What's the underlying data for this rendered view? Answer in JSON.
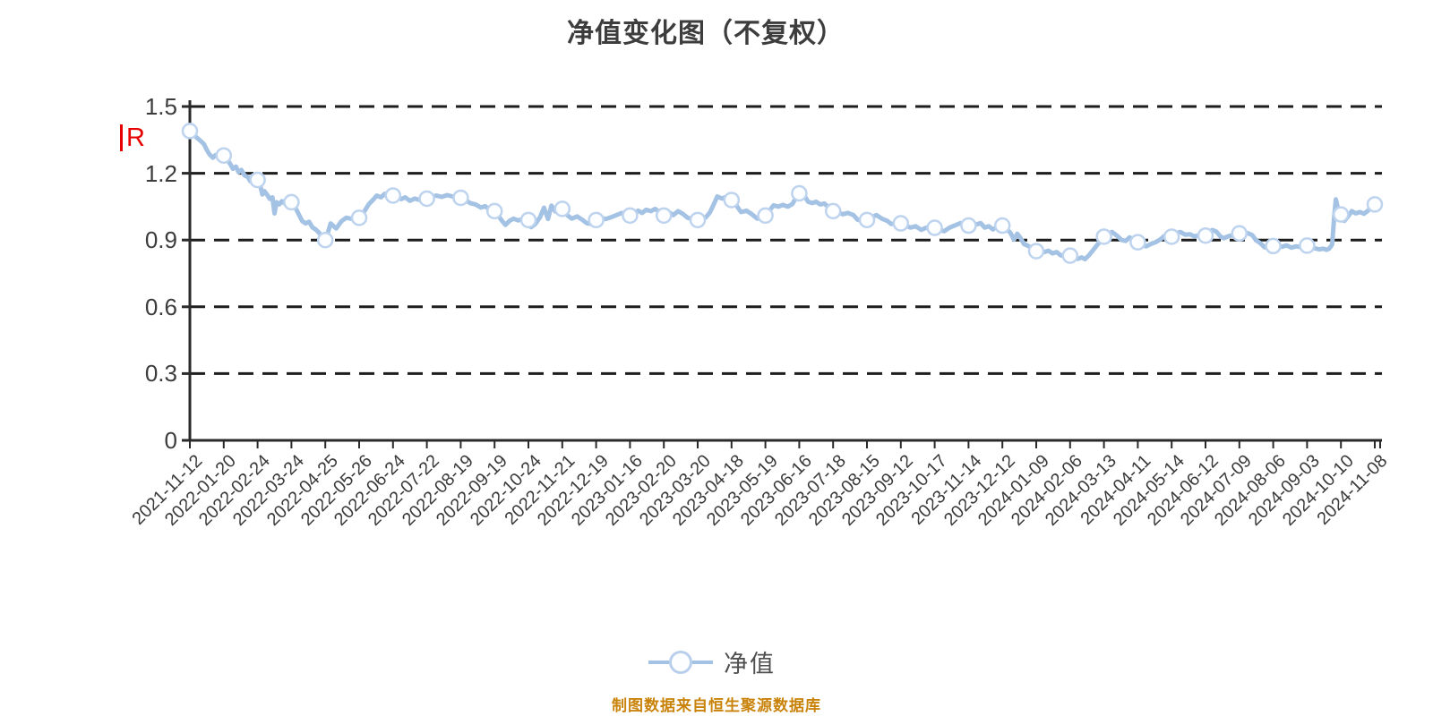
{
  "title": "净值变化图（不复权）",
  "annotation": {
    "text": "R",
    "color": "#e60000"
  },
  "legend": {
    "label": "净值"
  },
  "footer": {
    "text": "制图数据来自恒生聚源数据库",
    "color": "#c9830b"
  },
  "chart_data": {
    "type": "line",
    "title": "净值变化图（不复权）",
    "series_name": "净值",
    "ylim": [
      0,
      1.5
    ],
    "y_ticks": [
      "0",
      "0.3",
      "0.6",
      "0.9",
      "1.2",
      "1.5"
    ],
    "grid": "dashed-horizontal",
    "legend_position": "bottom-center",
    "x_labels": [
      "2021-11-12",
      "2022-01-20",
      "2022-02-24",
      "2022-03-24",
      "2022-04-25",
      "2022-05-26",
      "2022-06-24",
      "2022-07-22",
      "2022-08-19",
      "2022-09-19",
      "2022-10-24",
      "2022-11-21",
      "2022-12-19",
      "2023-01-16",
      "2023-02-20",
      "2023-03-20",
      "2023-04-18",
      "2023-05-19",
      "2023-06-16",
      "2023-07-18",
      "2023-08-15",
      "2023-09-12",
      "2023-10-17",
      "2023-11-14",
      "2023-12-12",
      "2024-01-09",
      "2024-02-06",
      "2024-03-13",
      "2024-04-11",
      "2024-05-14",
      "2024-06-12",
      "2024-07-09",
      "2024-08-06",
      "2024-09-03",
      "2024-10-10",
      "2024-11-08"
    ],
    "marker_values": [
      1.39,
      1.28,
      1.17,
      1.07,
      0.9,
      1.0,
      1.1,
      1.086,
      1.09,
      1.03,
      0.99,
      1.04,
      0.99,
      1.01,
      1.01,
      0.99,
      1.08,
      1.01,
      1.11,
      1.03,
      0.99,
      0.975,
      0.955,
      0.965,
      0.965,
      0.85,
      0.83,
      0.915,
      0.89,
      0.915,
      0.92,
      0.93,
      0.873,
      0.875,
      1.015,
      1.06
    ],
    "dense_path": [
      [
        0,
        1.39
      ],
      [
        0.12,
        1.372
      ],
      [
        0.22,
        1.358
      ],
      [
        0.32,
        1.345
      ],
      [
        0.42,
        1.33
      ],
      [
        0.5,
        1.305
      ],
      [
        0.58,
        1.285
      ],
      [
        0.68,
        1.27
      ],
      [
        0.76,
        1.282
      ],
      [
        0.86,
        1.272
      ],
      [
        0.94,
        1.285
      ],
      [
        1,
        1.28
      ],
      [
        1.1,
        1.262
      ],
      [
        1.2,
        1.24
      ],
      [
        1.27,
        1.22
      ],
      [
        1.36,
        1.23
      ],
      [
        1.44,
        1.205
      ],
      [
        1.52,
        1.215
      ],
      [
        1.62,
        1.19
      ],
      [
        1.72,
        1.182
      ],
      [
        1.78,
        1.165
      ],
      [
        1.86,
        1.19
      ],
      [
        1.94,
        1.178
      ],
      [
        2,
        1.17
      ],
      [
        2.08,
        1.145
      ],
      [
        2.14,
        1.105
      ],
      [
        2.2,
        1.12
      ],
      [
        2.3,
        1.1
      ],
      [
        2.36,
        1.085
      ],
      [
        2.44,
        1.092
      ],
      [
        2.5,
        1.02
      ],
      [
        2.56,
        1.07
      ],
      [
        2.64,
        1.06
      ],
      [
        2.72,
        1.075
      ],
      [
        2.82,
        1.062
      ],
      [
        2.9,
        1.058
      ],
      [
        3,
        1.07
      ],
      [
        3.1,
        1.05
      ],
      [
        3.2,
        1.02
      ],
      [
        3.32,
        0.985
      ],
      [
        3.42,
        0.975
      ],
      [
        3.52,
        0.982
      ],
      [
        3.62,
        0.957
      ],
      [
        3.72,
        0.947
      ],
      [
        3.82,
        0.932
      ],
      [
        3.92,
        0.91
      ],
      [
        4,
        0.9
      ],
      [
        4.08,
        0.935
      ],
      [
        4.16,
        0.975
      ],
      [
        4.32,
        0.952
      ],
      [
        4.48,
        0.985
      ],
      [
        4.62,
        1.0
      ],
      [
        4.78,
        0.995
      ],
      [
        4.9,
        1.002
      ],
      [
        5,
        1.0
      ],
      [
        5.14,
        1.025
      ],
      [
        5.28,
        1.06
      ],
      [
        5.42,
        1.082
      ],
      [
        5.52,
        1.1
      ],
      [
        5.64,
        1.092
      ],
      [
        5.76,
        1.108
      ],
      [
        5.88,
        1.1
      ],
      [
        6,
        1.1
      ],
      [
        6.12,
        1.094
      ],
      [
        6.24,
        1.084
      ],
      [
        6.36,
        1.092
      ],
      [
        6.5,
        1.076
      ],
      [
        6.64,
        1.086
      ],
      [
        6.78,
        1.08
      ],
      [
        6.9,
        1.09
      ],
      [
        7,
        1.086
      ],
      [
        7.14,
        1.094
      ],
      [
        7.28,
        1.1
      ],
      [
        7.44,
        1.094
      ],
      [
        7.6,
        1.102
      ],
      [
        7.76,
        1.096
      ],
      [
        7.9,
        1.09
      ],
      [
        8,
        1.09
      ],
      [
        8.14,
        1.08
      ],
      [
        8.28,
        1.066
      ],
      [
        8.44,
        1.06
      ],
      [
        8.6,
        1.046
      ],
      [
        8.72,
        1.052
      ],
      [
        8.86,
        1.036
      ],
      [
        9,
        1.03
      ],
      [
        9.1,
        1.012
      ],
      [
        9.2,
        0.99
      ],
      [
        9.32,
        0.968
      ],
      [
        9.44,
        0.986
      ],
      [
        9.56,
        0.996
      ],
      [
        9.7,
        0.988
      ],
      [
        9.85,
        0.996
      ],
      [
        10,
        0.99
      ],
      [
        10.08,
        0.958
      ],
      [
        10.2,
        0.972
      ],
      [
        10.34,
        1.002
      ],
      [
        10.46,
        1.045
      ],
      [
        10.58,
        0.995
      ],
      [
        10.68,
        1.055
      ],
      [
        10.8,
        1.028
      ],
      [
        10.9,
        1.038
      ],
      [
        11,
        1.04
      ],
      [
        11.14,
        1.012
      ],
      [
        11.28,
        0.996
      ],
      [
        11.44,
        1.006
      ],
      [
        11.6,
        0.99
      ],
      [
        11.72,
        0.976
      ],
      [
        11.86,
        0.972
      ],
      [
        12,
        0.99
      ],
      [
        12.14,
        1.0
      ],
      [
        12.28,
        0.994
      ],
      [
        12.44,
        1.002
      ],
      [
        12.6,
        1.012
      ],
      [
        12.76,
        1.022
      ],
      [
        12.9,
        1.016
      ],
      [
        13,
        1.01
      ],
      [
        13.12,
        1.022
      ],
      [
        13.24,
        1.032
      ],
      [
        13.36,
        1.022
      ],
      [
        13.48,
        1.036
      ],
      [
        13.62,
        1.03
      ],
      [
        13.74,
        1.04
      ],
      [
        13.86,
        1.028
      ],
      [
        14,
        1.01
      ],
      [
        14.14,
        1.026
      ],
      [
        14.28,
        1.012
      ],
      [
        14.42,
        1.03
      ],
      [
        14.56,
        1.018
      ],
      [
        14.7,
        1.0
      ],
      [
        14.85,
        0.994
      ],
      [
        15,
        0.99
      ],
      [
        15.12,
        0.986
      ],
      [
        15.24,
        1.002
      ],
      [
        15.36,
        1.024
      ],
      [
        15.48,
        1.062
      ],
      [
        15.58,
        1.096
      ],
      [
        15.72,
        1.086
      ],
      [
        15.86,
        1.096
      ],
      [
        16,
        1.082
      ],
      [
        16.14,
        1.056
      ],
      [
        16.28,
        1.026
      ],
      [
        16.44,
        1.032
      ],
      [
        16.6,
        1.016
      ],
      [
        16.76,
        0.996
      ],
      [
        16.9,
        1.002
      ],
      [
        17,
        1.01
      ],
      [
        17.12,
        1.032
      ],
      [
        17.24,
        1.056
      ],
      [
        17.38,
        1.05
      ],
      [
        17.52,
        1.058
      ],
      [
        17.66,
        1.05
      ],
      [
        17.8,
        1.062
      ],
      [
        17.9,
        1.09
      ],
      [
        18,
        1.11
      ],
      [
        18.07,
        1.135
      ],
      [
        18.16,
        1.098
      ],
      [
        18.26,
        1.072
      ],
      [
        18.38,
        1.066
      ],
      [
        18.5,
        1.072
      ],
      [
        18.62,
        1.06
      ],
      [
        18.74,
        1.064
      ],
      [
        18.88,
        1.045
      ],
      [
        19,
        1.03
      ],
      [
        19.14,
        1.026
      ],
      [
        19.28,
        1.016
      ],
      [
        19.44,
        1.022
      ],
      [
        19.6,
        1.012
      ],
      [
        19.72,
        0.992
      ],
      [
        19.86,
        0.986
      ],
      [
        20,
        0.99
      ],
      [
        20.14,
        1.002
      ],
      [
        20.28,
        1.012
      ],
      [
        20.44,
        0.996
      ],
      [
        20.6,
        0.986
      ],
      [
        20.72,
        0.972
      ],
      [
        20.86,
        0.976
      ],
      [
        21,
        0.975
      ],
      [
        21.14,
        0.966
      ],
      [
        21.28,
        0.956
      ],
      [
        21.44,
        0.962
      ],
      [
        21.6,
        0.946
      ],
      [
        21.76,
        0.956
      ],
      [
        21.9,
        0.95
      ],
      [
        22,
        0.955
      ],
      [
        22.14,
        0.946
      ],
      [
        22.28,
        0.94
      ],
      [
        22.44,
        0.956
      ],
      [
        22.6,
        0.966
      ],
      [
        22.76,
        0.976
      ],
      [
        22.9,
        0.97
      ],
      [
        23,
        0.965
      ],
      [
        23.12,
        0.976
      ],
      [
        23.24,
        0.97
      ],
      [
        23.36,
        0.976
      ],
      [
        23.48,
        0.956
      ],
      [
        23.6,
        0.962
      ],
      [
        23.72,
        0.948
      ],
      [
        23.84,
        0.958
      ],
      [
        23.94,
        0.974
      ],
      [
        24,
        0.965
      ],
      [
        24.12,
        0.95
      ],
      [
        24.24,
        0.932
      ],
      [
        24.34,
        0.902
      ],
      [
        24.44,
        0.928
      ],
      [
        24.54,
        0.908
      ],
      [
        24.64,
        0.882
      ],
      [
        24.76,
        0.874
      ],
      [
        24.88,
        0.862
      ],
      [
        25,
        0.85
      ],
      [
        25.12,
        0.856
      ],
      [
        25.24,
        0.846
      ],
      [
        25.36,
        0.852
      ],
      [
        25.48,
        0.84
      ],
      [
        25.6,
        0.846
      ],
      [
        25.72,
        0.832
      ],
      [
        25.84,
        0.826
      ],
      [
        25.94,
        0.836
      ],
      [
        26,
        0.83
      ],
      [
        26.1,
        0.82
      ],
      [
        26.22,
        0.815
      ],
      [
        26.34,
        0.822
      ],
      [
        26.44,
        0.814
      ],
      [
        26.56,
        0.832
      ],
      [
        26.68,
        0.855
      ],
      [
        26.8,
        0.878
      ],
      [
        26.9,
        0.895
      ],
      [
        27,
        0.915
      ],
      [
        27.12,
        0.926
      ],
      [
        27.24,
        0.936
      ],
      [
        27.38,
        0.92
      ],
      [
        27.52,
        0.9
      ],
      [
        27.64,
        0.896
      ],
      [
        27.76,
        0.912
      ],
      [
        27.88,
        0.898
      ],
      [
        28,
        0.89
      ],
      [
        28.12,
        0.88
      ],
      [
        28.24,
        0.872
      ],
      [
        28.38,
        0.882
      ],
      [
        28.52,
        0.89
      ],
      [
        28.66,
        0.902
      ],
      [
        28.78,
        0.918
      ],
      [
        28.9,
        0.912
      ],
      [
        29,
        0.915
      ],
      [
        29.12,
        0.93
      ],
      [
        29.26,
        0.936
      ],
      [
        29.4,
        0.924
      ],
      [
        29.54,
        0.926
      ],
      [
        29.68,
        0.916
      ],
      [
        29.82,
        0.922
      ],
      [
        29.92,
        0.918
      ],
      [
        30,
        0.92
      ],
      [
        30.1,
        0.926
      ],
      [
        30.2,
        0.945
      ],
      [
        30.32,
        0.938
      ],
      [
        30.44,
        0.916
      ],
      [
        30.54,
        0.908
      ],
      [
        30.66,
        0.916
      ],
      [
        30.8,
        0.922
      ],
      [
        30.9,
        0.928
      ],
      [
        31,
        0.93
      ],
      [
        31.12,
        0.934
      ],
      [
        31.26,
        0.93
      ],
      [
        31.38,
        0.922
      ],
      [
        31.5,
        0.898
      ],
      [
        31.62,
        0.886
      ],
      [
        31.74,
        0.868
      ],
      [
        31.86,
        0.864
      ],
      [
        31.94,
        0.872
      ],
      [
        32,
        0.873
      ],
      [
        32.12,
        0.876
      ],
      [
        32.26,
        0.87
      ],
      [
        32.4,
        0.876
      ],
      [
        32.54,
        0.866
      ],
      [
        32.68,
        0.872
      ],
      [
        32.82,
        0.868
      ],
      [
        32.92,
        0.878
      ],
      [
        33,
        0.875
      ],
      [
        33.12,
        0.868
      ],
      [
        33.24,
        0.862
      ],
      [
        33.36,
        0.858
      ],
      [
        33.48,
        0.861
      ],
      [
        33.58,
        0.856
      ],
      [
        33.66,
        0.862
      ],
      [
        33.74,
        0.88
      ],
      [
        33.8,
        1.0
      ],
      [
        33.85,
        1.083
      ],
      [
        33.92,
        1.035
      ],
      [
        34,
        1.015
      ],
      [
        34.1,
        0.986
      ],
      [
        34.22,
        1.008
      ],
      [
        34.32,
        1.03
      ],
      [
        34.44,
        1.02
      ],
      [
        34.56,
        1.026
      ],
      [
        34.68,
        1.018
      ],
      [
        34.8,
        1.032
      ],
      [
        34.9,
        1.048
      ],
      [
        35,
        1.06
      ],
      [
        35.1,
        1.058
      ]
    ],
    "colors": {
      "line": "#a4c2e4",
      "marker_fill": "#fdfeff",
      "marker_stroke": "#bdd3ee",
      "grid": "#1d1d1d",
      "axis": "#2a2a2a",
      "tick_label": "#3c3c3c",
      "date_label": "#3a3a3a"
    }
  }
}
